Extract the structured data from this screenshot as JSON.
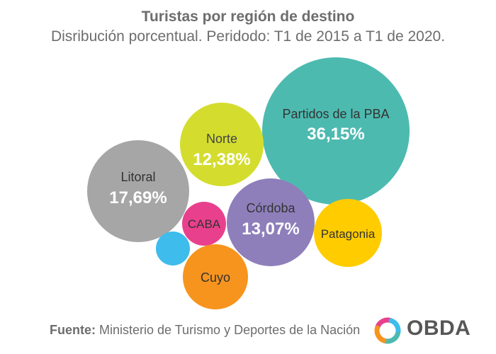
{
  "chart_data": {
    "type": "bubble",
    "title": "Turistas por región de destino",
    "subtitle": "Disribución porcentual. Peridodo: T1 de 2015 a T1 de 2020.",
    "unit": "%",
    "series": [
      {
        "name": "Partidos de la PBA",
        "value": 36.15,
        "display": "36,15%",
        "color": "#4dbab0"
      },
      {
        "name": "Litoral",
        "value": 17.69,
        "display": "17,69%",
        "color": "#a6a6a6"
      },
      {
        "name": "Córdoba",
        "value": 13.07,
        "display": "13,07%",
        "color": "#8e7fbb"
      },
      {
        "name": "Norte",
        "value": 12.38,
        "display": "12,38%",
        "color": "#d4dd2e"
      },
      {
        "name": "Patagonia",
        "value": null,
        "display": "",
        "color": "#ffcc00"
      },
      {
        "name": "Cuyo",
        "value": null,
        "display": "",
        "color": "#f7941d"
      },
      {
        "name": "CABA",
        "value": null,
        "display": "",
        "color": "#e9408d"
      },
      {
        "name": "",
        "value": null,
        "display": "",
        "color": "#3ebcec"
      }
    ]
  },
  "footer": {
    "source_label": "Fuente:",
    "source_text": "Ministerio de Turismo y Deportes de la Nación"
  },
  "logo": {
    "text": "OBDA",
    "colors": [
      "#e9408d",
      "#3ebcec",
      "#4dbab0",
      "#f7941d"
    ]
  }
}
